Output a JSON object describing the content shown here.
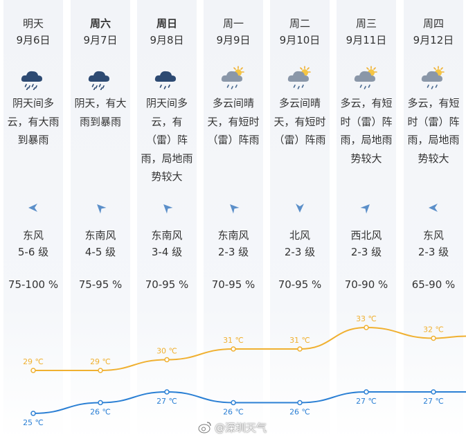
{
  "days": [
    {
      "day": "明天",
      "date": "9月6日",
      "icon": "heavy-rain-cloud-icon",
      "desc": [
        "阴天间多",
        "云，有大雨",
        "到暴雨"
      ],
      "wind_dir": "东风",
      "wind_level": "5-6 级",
      "humidity": "75-100 %",
      "high": "29 ℃",
      "low": "25 ℃",
      "arrow_rotation": 180
    },
    {
      "day": "周六",
      "date": "9月7日",
      "icon": "heavy-rain-cloud-icon",
      "desc": [
        "阴天，有大",
        "雨到暴雨"
      ],
      "wind_dir": "东南风",
      "wind_level": "4-5 级",
      "humidity": "75-95 %",
      "high": "29 ℃",
      "low": "26 ℃",
      "arrow_rotation": 225
    },
    {
      "day": "周日",
      "date": "9月8日",
      "icon": "rain-cloud-icon",
      "desc": [
        "阴天间多",
        "云，有",
        "（雷）阵",
        "雨，局地雨",
        "势较大"
      ],
      "wind_dir": "东南风",
      "wind_level": "3-4 级",
      "humidity": "70-95 %",
      "high": "30 ℃",
      "low": "27 ℃",
      "arrow_rotation": 225
    },
    {
      "day": "周一",
      "date": "9月9日",
      "icon": "sun-rain-cloud-icon",
      "desc": [
        "多云间晴",
        "天，有短时",
        "（雷）阵雨"
      ],
      "wind_dir": "东南风",
      "wind_level": "2-3 级",
      "humidity": "70-95 %",
      "high": "31 ℃",
      "low": "26 ℃",
      "arrow_rotation": 225
    },
    {
      "day": "周二",
      "date": "9月10日",
      "icon": "sun-rain-cloud-icon",
      "desc": [
        "多云间晴",
        "天，有短时",
        "（雷）阵雨"
      ],
      "wind_dir": "北风",
      "wind_level": "2-3 级",
      "humidity": "70-95 %",
      "high": "31 ℃",
      "low": "26 ℃",
      "arrow_rotation": 90
    },
    {
      "day": "周三",
      "date": "9月11日",
      "icon": "sun-rain-cloud-icon",
      "desc": [
        "多云，有短",
        "时（雷）阵",
        "雨，局地雨",
        "势较大"
      ],
      "wind_dir": "西北风",
      "wind_level": "2-3 级",
      "humidity": "70-90 %",
      "high": "33 ℃",
      "low": "27 ℃",
      "arrow_rotation": 315
    },
    {
      "day": "周四",
      "date": "9月12日",
      "icon": "sun-rain-cloud-icon",
      "desc": [
        "多云，有短",
        "时（雷）阵",
        "雨，局地雨",
        "势较大"
      ],
      "wind_dir": "东风",
      "wind_level": "2-3 级",
      "humidity": "65-90 %",
      "high": "32 ℃",
      "low": "27 ℃",
      "arrow_rotation": 180
    }
  ],
  "chart_data": {
    "type": "line",
    "categories": [
      "明天",
      "周六",
      "周日",
      "周一",
      "周二",
      "周三",
      "周四"
    ],
    "series": [
      {
        "values": [
          29,
          29,
          30,
          31,
          31,
          33,
          32
        ]
      },
      {
        "values": [
          25,
          26,
          27,
          26,
          26,
          27,
          27
        ]
      }
    ],
    "unit": "℃",
    "grid": false,
    "colors": {
      "high": "#f0b030",
      "low": "#2a7fd4"
    }
  },
  "watermark": {
    "text": "@深圳天气"
  }
}
